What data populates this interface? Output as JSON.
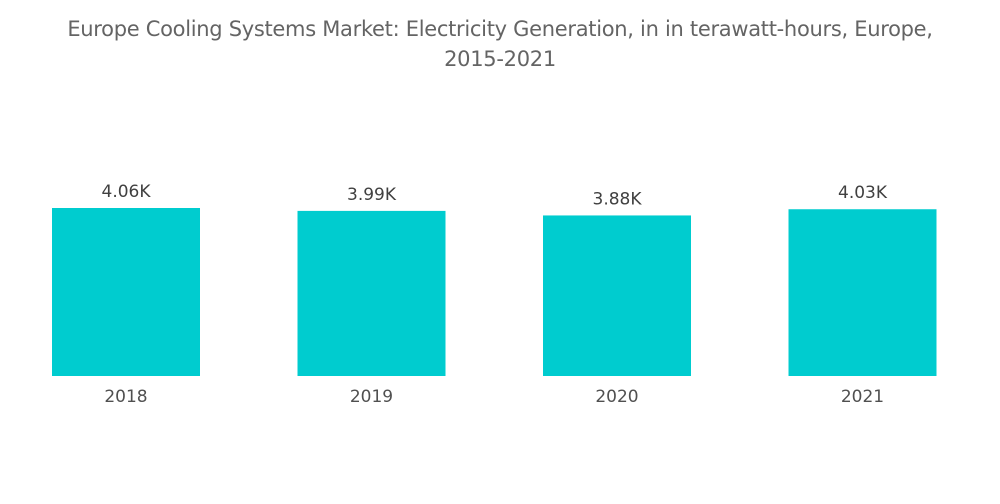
{
  "chart_data": {
    "type": "bar",
    "title_line1": "Europe Cooling Systems Market: Electricity Generation, in in terawatt-hours, Europe,",
    "title_line2": "2015-2021",
    "categories": [
      "2018",
      "2019",
      "2020",
      "2021"
    ],
    "values": [
      4.06,
      3.99,
      3.88,
      4.03
    ],
    "value_labels": [
      "4.06K",
      "3.99K",
      "3.88K",
      "4.03K"
    ],
    "unit": "K terawatt-hours",
    "xlabel": "",
    "ylabel": "",
    "ylim": [
      0,
      4.06
    ],
    "grid": false,
    "legend": "none",
    "bar_color": "#00cccf"
  }
}
